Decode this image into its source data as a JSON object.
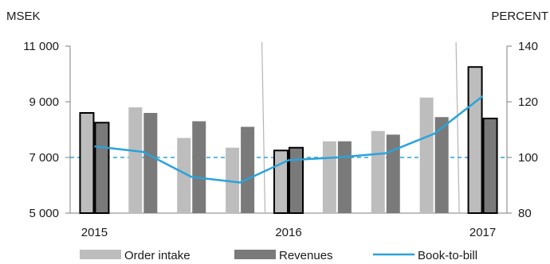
{
  "chart_data": {
    "type": "bar",
    "left_axis_label": "MSEK",
    "right_axis_label": "PERCENT",
    "y_left": {
      "min": 5000,
      "max": 11000,
      "ticks": [
        "5 000",
        "7 000",
        "9 000",
        "11 000"
      ],
      "tick_values": [
        5000,
        7000,
        9000,
        11000
      ]
    },
    "y_right": {
      "min": 80,
      "max": 140,
      "ticks": [
        "80",
        "100",
        "120",
        "140"
      ],
      "tick_values": [
        80,
        100,
        120,
        140
      ]
    },
    "year_labels": [
      {
        "label": "2015",
        "quarter_index": 0
      },
      {
        "label": "2016",
        "quarter_index": 4
      },
      {
        "label": "2017",
        "quarter_index": 8
      }
    ],
    "year_separators_after_quarter": [
      3,
      7
    ],
    "quarters": 9,
    "series": [
      {
        "name": "Order intake",
        "kind": "bar",
        "color": "#bdbdbd",
        "values": [
          8600,
          8800,
          7700,
          7350,
          7250,
          7580,
          7950,
          9150,
          10250
        ]
      },
      {
        "name": "Revenues",
        "kind": "bar",
        "color": "#7a7a7a",
        "values": [
          8250,
          8600,
          8300,
          8100,
          7350,
          7580,
          7820,
          8450,
          8400
        ]
      },
      {
        "name": "Book-to-bill",
        "kind": "line",
        "axis": "right",
        "color": "#2aa3da",
        "values": [
          104,
          102,
          93,
          91,
          99,
          100,
          101.5,
          108.5,
          122
        ]
      }
    ],
    "outlined_quarters": [
      0,
      4,
      8
    ],
    "reference_line": {
      "axis": "right",
      "value": 100,
      "style": "dashed",
      "color": "#2aa3da"
    }
  }
}
